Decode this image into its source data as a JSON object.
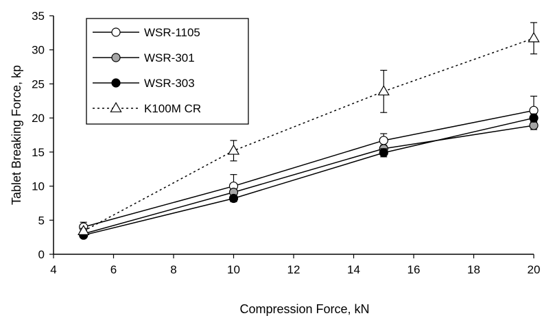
{
  "chart_data": {
    "type": "line",
    "title": "",
    "xlabel": "Compression Force, kN",
    "ylabel": "Tablet Breaking Force, kp",
    "xlim": [
      4,
      20
    ],
    "ylim": [
      0,
      35
    ],
    "xticks": [
      4,
      6,
      8,
      10,
      12,
      14,
      16,
      18,
      20
    ],
    "yticks": [
      0,
      5,
      10,
      15,
      20,
      25,
      30,
      35
    ],
    "grid": false,
    "legend_position": "top-left",
    "series": [
      {
        "name": "WSR-1105",
        "marker": "open-circle",
        "line": "solid",
        "x": [
          5,
          10,
          15,
          20
        ],
        "y": [
          4.0,
          10.0,
          16.7,
          21.1
        ],
        "err": [
          0.7,
          1.7,
          1.0,
          2.1
        ]
      },
      {
        "name": "WSR-301",
        "marker": "gray-circle",
        "line": "solid",
        "x": [
          5,
          10,
          15,
          20
        ],
        "y": [
          3.0,
          9.1,
          15.5,
          18.9
        ],
        "err": [
          0.5,
          0.5,
          0.5,
          0.6
        ]
      },
      {
        "name": "WSR-303",
        "marker": "filled-circle",
        "line": "solid",
        "x": [
          5,
          10,
          15,
          20
        ],
        "y": [
          2.8,
          8.2,
          14.9,
          20.0
        ],
        "err": [
          0.4,
          0.5,
          0.6,
          0.6
        ]
      },
      {
        "name": "K100M CR",
        "marker": "open-triangle",
        "line": "dotted",
        "x": [
          5,
          10,
          15,
          20
        ],
        "y": [
          3.4,
          15.2,
          23.9,
          31.7
        ],
        "err": [
          0.4,
          1.5,
          3.1,
          2.3
        ]
      }
    ]
  },
  "colors": {
    "line": "#000000",
    "marker_fill_open": "#ffffff",
    "marker_fill_gray": "#a6a6a6",
    "marker_fill_filled": "#000000",
    "background": "#ffffff"
  }
}
